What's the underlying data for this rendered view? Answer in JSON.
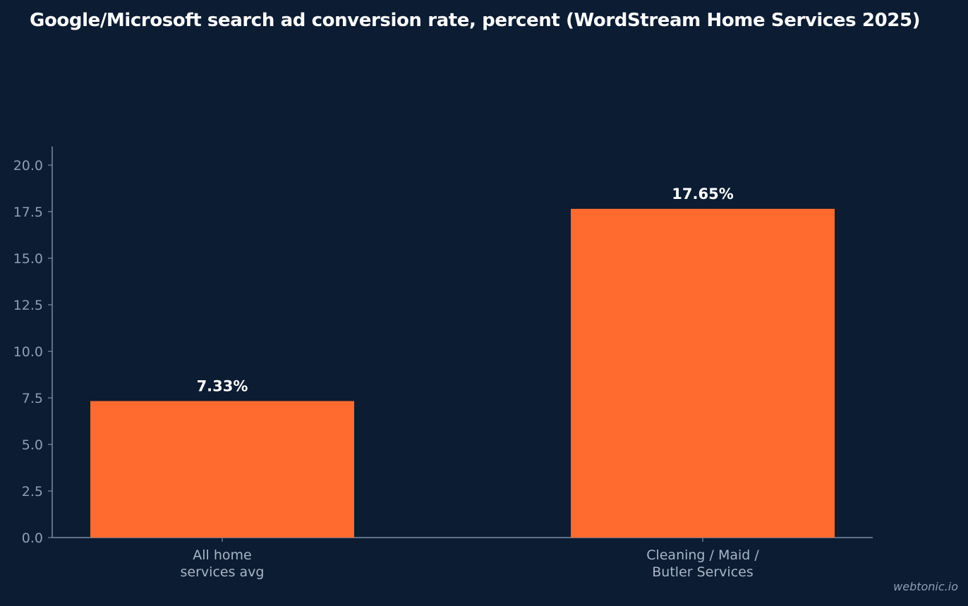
{
  "chart_data": {
    "type": "bar",
    "title": "Google/Microsoft search ad conversion rate, percent (WordStream Home Services 2025)",
    "xlabel": "",
    "ylabel": "",
    "categories": [
      [
        "All home",
        "services avg"
      ],
      [
        "Cleaning / Maid /",
        "Butler Services"
      ]
    ],
    "values": [
      7.33,
      17.65
    ],
    "data_labels": [
      "7.33%",
      "17.65%"
    ],
    "ylim": [
      0,
      21
    ],
    "yticks": [
      0,
      2.5,
      5,
      7.5,
      10,
      12.5,
      15,
      17.5,
      20
    ],
    "ytick_labels": [
      "0.0",
      "2.5",
      "5.0",
      "7.5",
      "10.0",
      "12.5",
      "15.0",
      "17.5",
      "20.0"
    ],
    "grid": false,
    "legend": "none",
    "colors": {
      "background": "#0c1c33",
      "bar": "#ff6b2e",
      "axis": "#7e8ca3",
      "tick_text": "#8f9db5",
      "category_text": "#a9b5c8",
      "label_text": "#ffffff"
    }
  },
  "watermark": "webtonic.io"
}
